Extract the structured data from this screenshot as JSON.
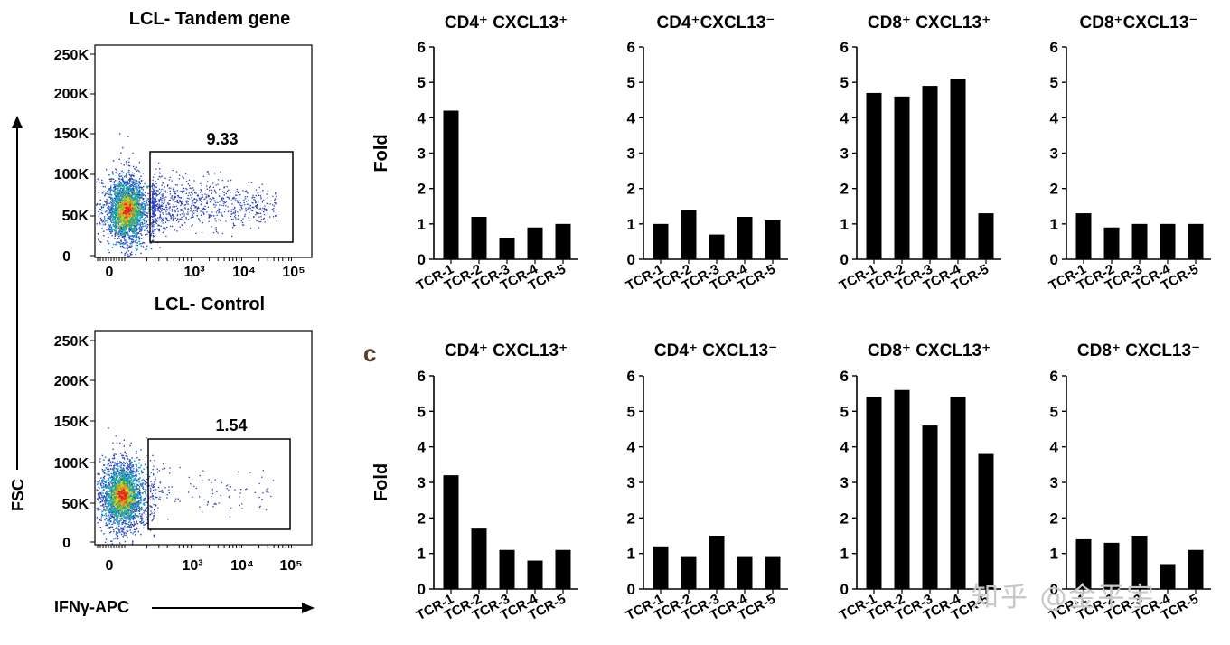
{
  "flow": [
    {
      "title": "LCL- Tandem gene",
      "gate_value": "9.33",
      "y_ticks": [
        "250K",
        "200K",
        "150K",
        "100K",
        "50K",
        "0"
      ],
      "x_ticks": [
        "0",
        "10³",
        "10⁴",
        "10⁵"
      ]
    },
    {
      "title": "LCL- Control",
      "gate_value": "1.54",
      "y_ticks": [
        "250K",
        "200K",
        "150K",
        "100K",
        "50K",
        "0"
      ],
      "x_ticks": [
        "0",
        "10³",
        "10⁴",
        "10⁵"
      ]
    }
  ],
  "flow_axes": {
    "ylabel": "FSC",
    "xlabel": "IFNγ-APC"
  },
  "panel_letter": "c",
  "chart_data": [
    {
      "type": "bar",
      "row": 1,
      "title": "CD4⁺ CXCL13⁺",
      "ylabel": "Fold",
      "ylim": [
        0,
        6
      ],
      "y_ticks": [
        "0",
        "1",
        "2",
        "3",
        "4",
        "5",
        "6"
      ],
      "categories": [
        "TCR-1",
        "TCR-2",
        "TCR-3",
        "TCR-4",
        "TCR-5"
      ],
      "values": [
        4.2,
        1.2,
        0.6,
        0.9,
        1.0
      ]
    },
    {
      "type": "bar",
      "row": 1,
      "title": "CD4⁺CXCL13⁻",
      "ylabel": "",
      "ylim": [
        0,
        6
      ],
      "y_ticks": [
        "0",
        "1",
        "2",
        "3",
        "4",
        "5",
        "6"
      ],
      "categories": [
        "TCR-1",
        "TCR-2",
        "TCR-3",
        "TCR-4",
        "TCR-5"
      ],
      "values": [
        1.0,
        1.4,
        0.7,
        1.2,
        1.1
      ]
    },
    {
      "type": "bar",
      "row": 1,
      "title": "CD8⁺ CXCL13⁺",
      "ylabel": "",
      "ylim": [
        0,
        6
      ],
      "y_ticks": [
        "0",
        "1",
        "2",
        "3",
        "4",
        "5",
        "6"
      ],
      "categories": [
        "TCR-1",
        "TCR-2",
        "TCR-3",
        "TCR-4",
        "TCR-5"
      ],
      "values": [
        4.7,
        4.6,
        4.9,
        5.1,
        1.3
      ]
    },
    {
      "type": "bar",
      "row": 1,
      "title": "CD8⁺CXCL13⁻",
      "ylabel": "",
      "ylim": [
        0,
        6
      ],
      "y_ticks": [
        "0",
        "1",
        "2",
        "3",
        "4",
        "5",
        "6"
      ],
      "categories": [
        "TCR-1",
        "TCR-2",
        "TCR-3",
        "TCR-4",
        "TCR-5"
      ],
      "values": [
        1.3,
        0.9,
        1.0,
        1.0,
        1.0
      ]
    },
    {
      "type": "bar",
      "row": 2,
      "title": "CD4⁺ CXCL13⁺",
      "ylabel": "Fold",
      "ylim": [
        0,
        6
      ],
      "y_ticks": [
        "0",
        "1",
        "2",
        "3",
        "4",
        "5",
        "6"
      ],
      "categories": [
        "TCR-1",
        "TCR-2",
        "TCR-3",
        "TCR-4",
        "TCR-5"
      ],
      "values": [
        3.2,
        1.7,
        1.1,
        0.8,
        1.1
      ]
    },
    {
      "type": "bar",
      "row": 2,
      "title": "CD4⁺ CXCL13⁻",
      "ylabel": "",
      "ylim": [
        0,
        6
      ],
      "y_ticks": [
        "0",
        "1",
        "2",
        "3",
        "4",
        "5",
        "6"
      ],
      "categories": [
        "TCR-1",
        "TCR-2",
        "TCR-3",
        "TCR-4",
        "TCR-5"
      ],
      "values": [
        1.2,
        0.9,
        1.5,
        0.9,
        0.9
      ]
    },
    {
      "type": "bar",
      "row": 2,
      "title": "CD8⁺ CXCL13⁺",
      "ylabel": "",
      "ylim": [
        0,
        6
      ],
      "y_ticks": [
        "0",
        "1",
        "2",
        "3",
        "4",
        "5",
        "6"
      ],
      "categories": [
        "TCR-1",
        "TCR-2",
        "TCR-3",
        "TCR-4",
        "TCR-5"
      ],
      "values": [
        5.4,
        5.6,
        4.6,
        5.4,
        3.8
      ]
    },
    {
      "type": "bar",
      "row": 2,
      "title": "CD8⁺ CXCL13⁻",
      "ylabel": "",
      "ylim": [
        0,
        6
      ],
      "y_ticks": [
        "0",
        "1",
        "2",
        "3",
        "4",
        "5",
        "6"
      ],
      "categories": [
        "TCR-1",
        "TCR-2",
        "TCR-3",
        "TCR-4",
        "TCR-5"
      ],
      "values": [
        1.4,
        1.3,
        1.5,
        0.7,
        1.1
      ]
    }
  ],
  "watermark": "知乎 @金平宇"
}
